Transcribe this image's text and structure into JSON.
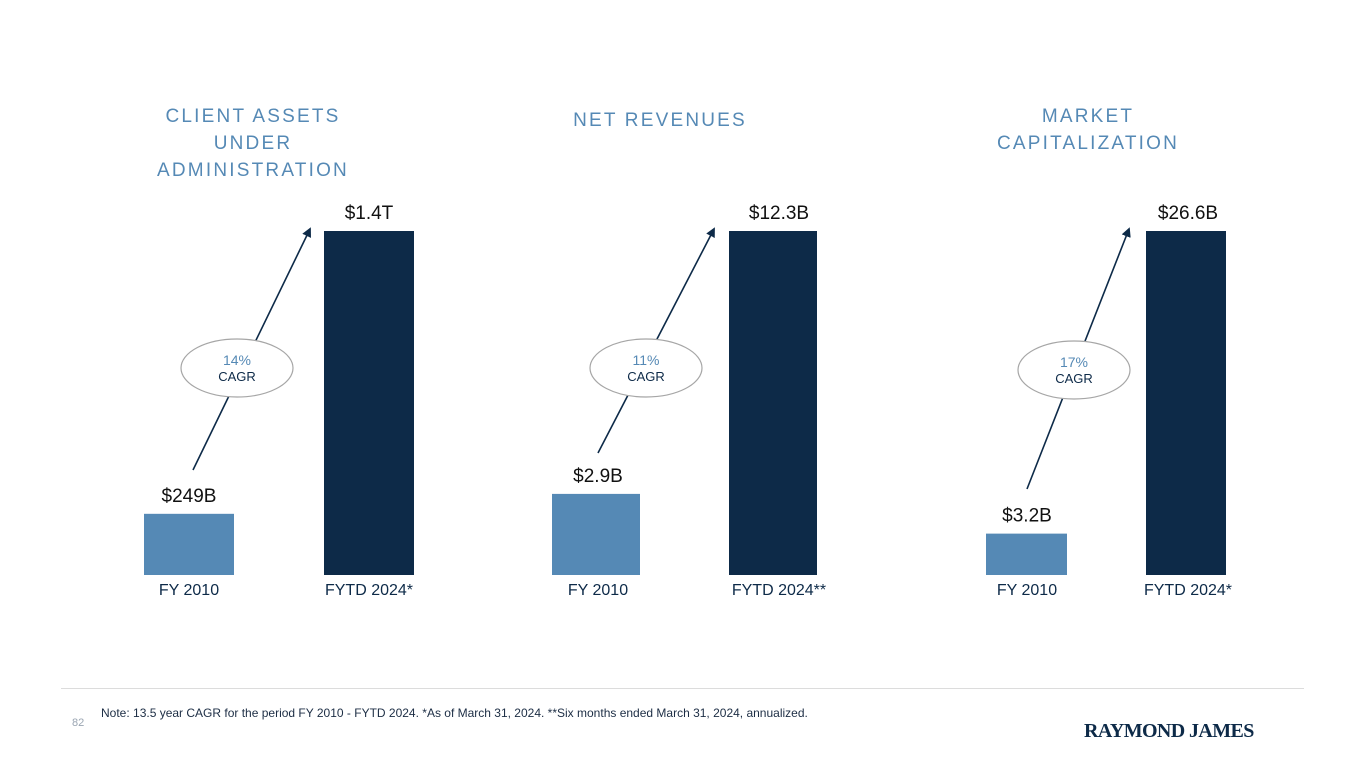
{
  "colors": {
    "title": "#5589b5",
    "bar_base": "#5589b5",
    "bar_current": "#0d2a48",
    "arrow": "#0d2a48",
    "ellipse_stroke": "#a6a6a6"
  },
  "chart_data": [
    {
      "type": "bar",
      "title_lines": [
        "CLIENT ASSETS",
        "UNDER",
        "ADMINISTRATION"
      ],
      "categories": [
        "FY 2010",
        "FYTD 2024*"
      ],
      "values": [
        0.249,
        1.4
      ],
      "unit": "trillions USD",
      "data_labels": [
        "$249B",
        "$1.4T"
      ],
      "cagr": {
        "pct": "14%",
        "label": "CAGR"
      }
    },
    {
      "type": "bar",
      "title_lines": [
        "NET REVENUES"
      ],
      "categories": [
        "FY 2010",
        "FYTD 2024**"
      ],
      "values": [
        2.9,
        12.3
      ],
      "unit": "billions USD",
      "data_labels": [
        "$2.9B",
        "$12.3B"
      ],
      "cagr": {
        "pct": "11%",
        "label": "CAGR"
      }
    },
    {
      "type": "bar",
      "title_lines": [
        "MARKET",
        "CAPITALIZATION"
      ],
      "categories": [
        "FY 2010",
        "FYTD 2024*"
      ],
      "values": [
        3.2,
        26.6
      ],
      "unit": "billions USD",
      "data_labels": [
        "$3.2B",
        "$26.6B"
      ],
      "cagr": {
        "pct": "17%",
        "label": "CAGR"
      }
    }
  ],
  "footer": {
    "page_number": "82",
    "note": "Note: 13.5 year CAGR for the period FY 2010 - FYTD 2024.  *As of March 31, 2024.  **Six months ended March 31, 2024, annualized.",
    "logo_text": "RAYMOND JAMES"
  }
}
